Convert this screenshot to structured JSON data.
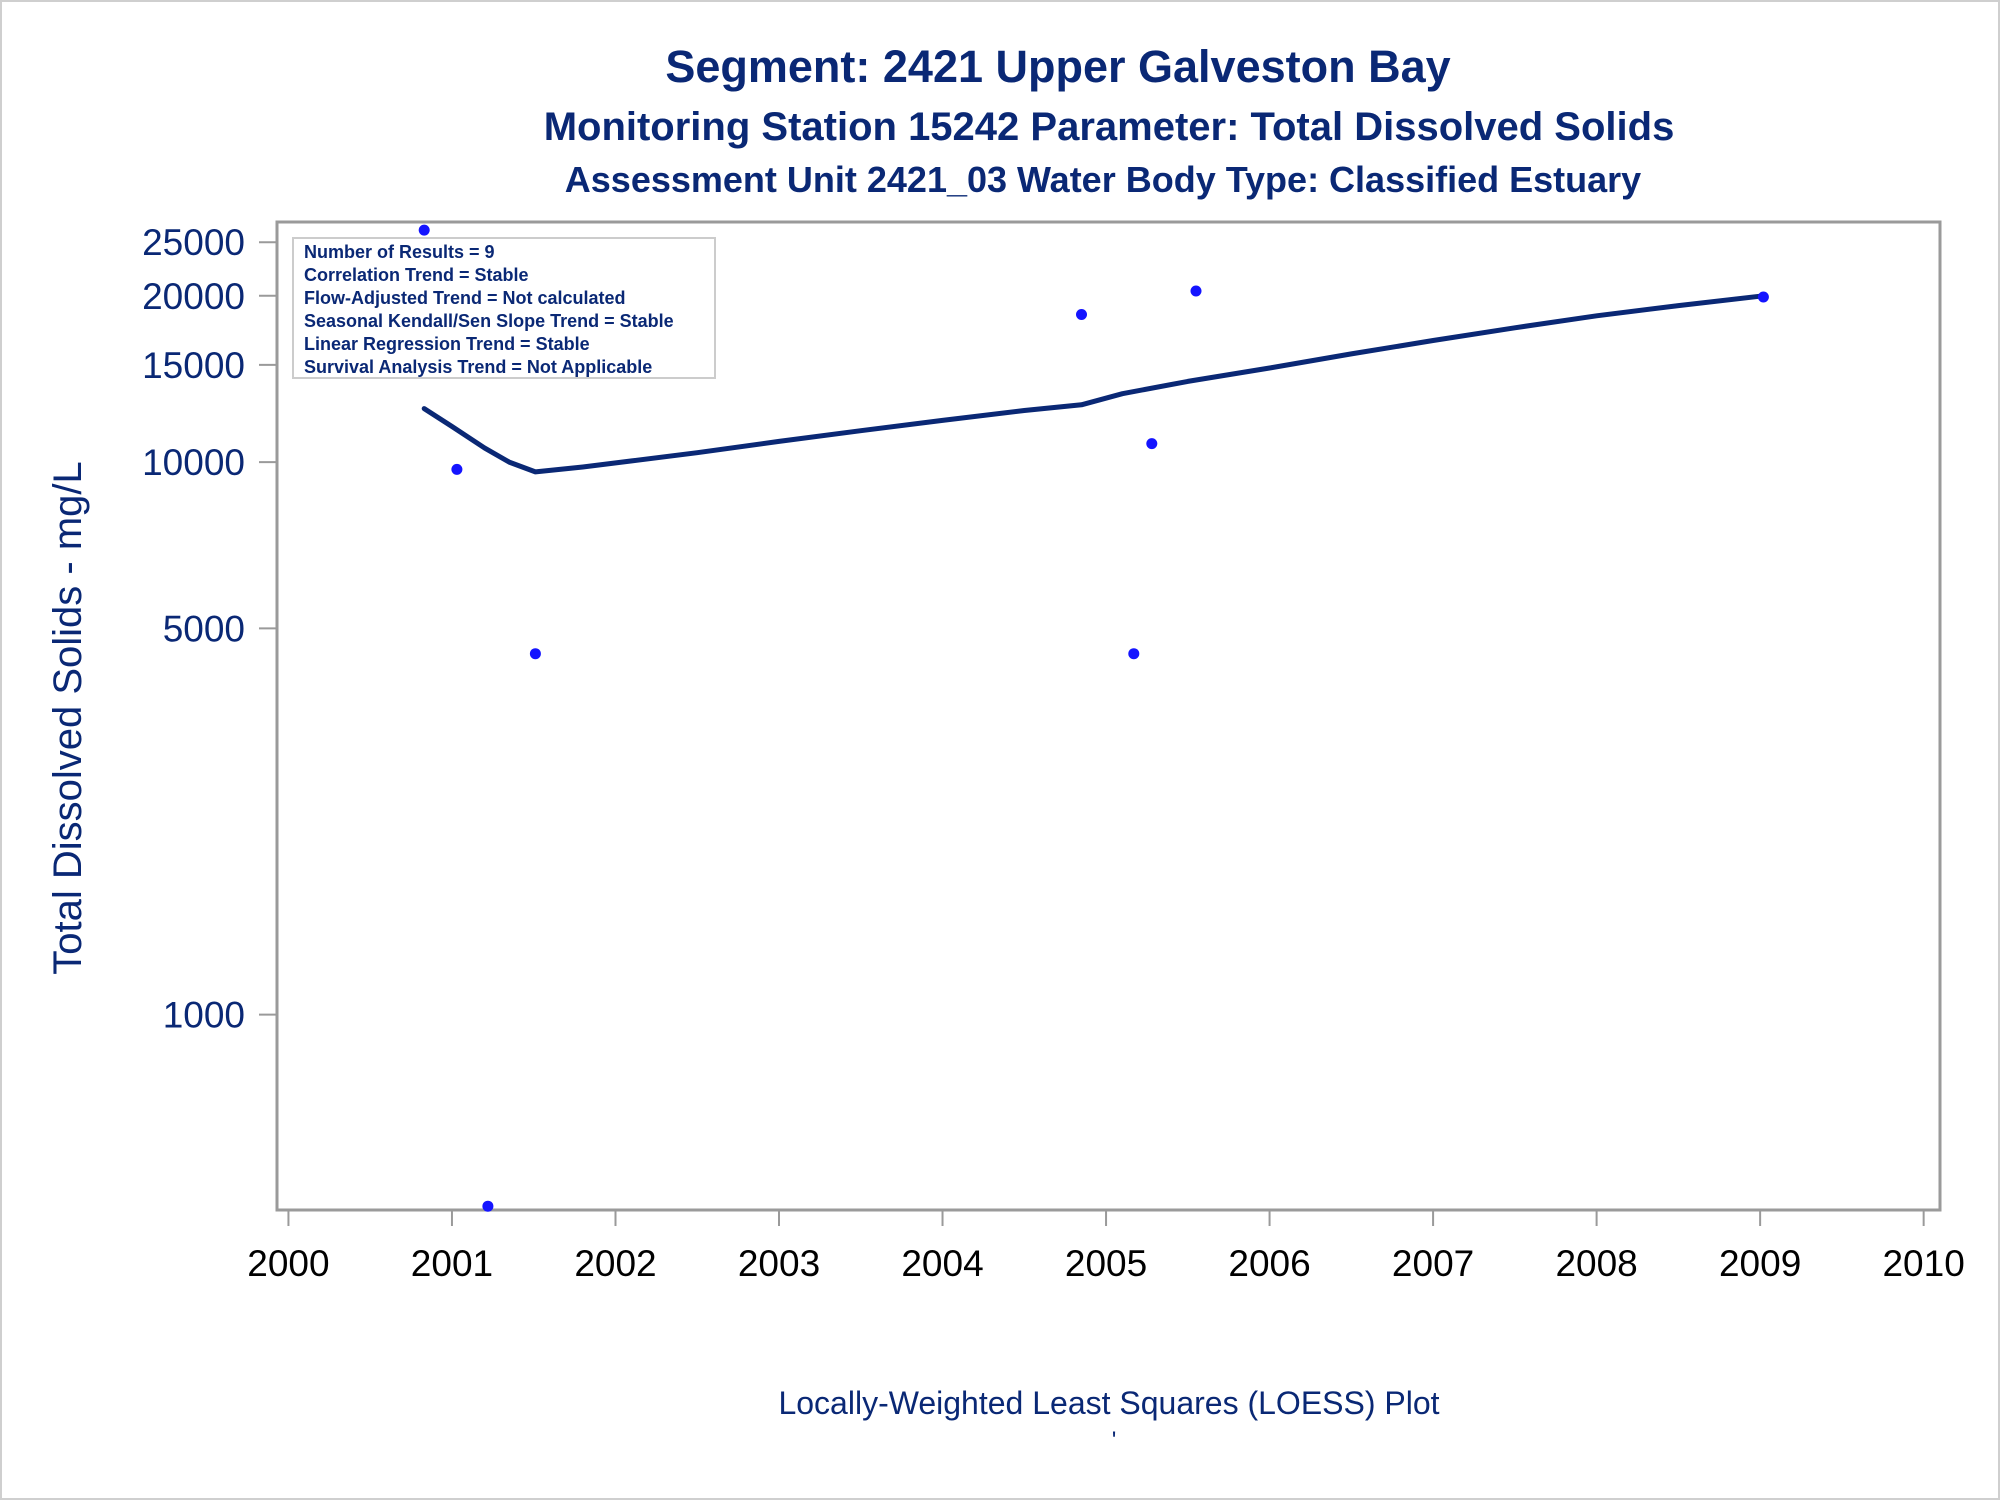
{
  "colors": {
    "text": "#0a2875",
    "line": "#0a2875",
    "marker": "#1414ff",
    "frame": "#9a9a9a"
  },
  "chart_data": {
    "type": "scatter",
    "title": "Segment: 2421  Upper Galveston Bay",
    "subtitle": "Monitoring Station 15242 Parameter: Total Dissolved Solids",
    "subtitle2": "Assessment Unit 2421_03   Water Body Type: Classified Estuary",
    "ylabel": "Total Dissolved Solids - mg/L",
    "xlabel": "Locally-Weighted Least Squares (LOESS) Plot",
    "footnote": "'",
    "y_scale": "log",
    "ylim": [
      443,
      27200
    ],
    "xlim": [
      1999.93,
      2010.1
    ],
    "y_ticks": [
      1000,
      5000,
      10000,
      15000,
      20000,
      25000
    ],
    "y_tick_labels": [
      "1000",
      "5000",
      "10000",
      "15000",
      "20000",
      "25000"
    ],
    "x_ticks": [
      2000,
      2001,
      2002,
      2003,
      2004,
      2005,
      2006,
      2007,
      2008,
      2009,
      2010
    ],
    "x_tick_labels": [
      "2000",
      "2001",
      "2002",
      "2003",
      "2004",
      "2005",
      "2006",
      "2007",
      "2008",
      "2009",
      "2010"
    ],
    "stats_box": [
      "Number of Results = 9",
      "Correlation Trend = Stable",
      "Flow-Adjusted Trend = Not calculated",
      "Seasonal Kendall/Sen Slope Trend = Stable",
      "Linear Regression Trend = Stable",
      "Survival Analysis Trend = Not Applicable"
    ],
    "legend_placement": "top-left inside plot",
    "series": [
      {
        "kind": "points",
        "x": [
          2000.83,
          2001.03,
          2001.22,
          2001.51,
          2004.85,
          2005.17,
          2005.28,
          2005.55,
          2009.02
        ],
        "y": [
          26300,
          9700,
          450,
          4500,
          18500,
          4500,
          10800,
          20400,
          19900
        ]
      },
      {
        "kind": "loess-line",
        "x": [
          2000.83,
          2001.0,
          2001.2,
          2001.35,
          2001.51,
          2001.8,
          2002.1,
          2002.5,
          2003.0,
          2003.5,
          2004.0,
          2004.5,
          2004.85,
          2005.1,
          2005.5,
          2006.0,
          2006.5,
          2007.0,
          2007.5,
          2008.0,
          2008.5,
          2009.02
        ],
        "y": [
          12500,
          11600,
          10600,
          10000,
          9600,
          9800,
          10050,
          10400,
          10900,
          11400,
          11900,
          12400,
          12700,
          13300,
          14000,
          14800,
          15700,
          16600,
          17500,
          18400,
          19200,
          20000
        ]
      }
    ]
  }
}
